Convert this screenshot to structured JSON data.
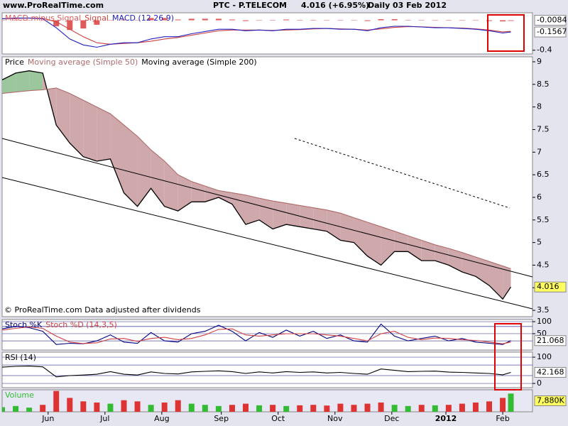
{
  "header": {
    "site": "www.ProRealTime.com",
    "title": "PTC - P.TELECOM",
    "quote": "4.016 (+6.95%)",
    "period": "Daily",
    "date": "03 Feb 2012"
  },
  "chart_data": [
    {
      "type": "line",
      "xlim": [
        -17,
        179
      ],
      "ylim": [
        -0.45,
        0.1
      ],
      "yticks": [
        -0.4
      ],
      "x": [
        -17,
        -12,
        -7,
        -2,
        3,
        8,
        13,
        18,
        23,
        28,
        33,
        38,
        43,
        48,
        53,
        58,
        63,
        68,
        73,
        78,
        83,
        88,
        93,
        98,
        103,
        108,
        113,
        118,
        123,
        128,
        133,
        138,
        143,
        148,
        153,
        158,
        163,
        168,
        171
      ],
      "series": [
        {
          "name": "MACD minus Signal",
          "type": "bar",
          "color": "#e05a5a",
          "values": [
            0,
            0.005,
            0,
            -0.005,
            -0.08,
            -0.13,
            -0.11,
            -0.06,
            0,
            0.01,
            0,
            0.03,
            0.03,
            0.01,
            0.02,
            0.02,
            0.02,
            0.01,
            -0.01,
            0,
            -0.005,
            0.01,
            0.005,
            0.005,
            0,
            -0.005,
            0,
            -0.01,
            0.015,
            0.015,
            0.005,
            -0.002,
            -0.005,
            0,
            -0.005,
            -0.005,
            -0.01,
            -0.015,
            -0.0084
          ]
        },
        {
          "name": "Signal",
          "type": "line",
          "color": "#d04040",
          "values": [
            0.02,
            0.025,
            0.03,
            0.025,
            -0.02,
            -0.12,
            -0.22,
            -0.3,
            -0.32,
            -0.31,
            -0.3,
            -0.28,
            -0.25,
            -0.23,
            -0.2,
            -0.17,
            -0.14,
            -0.13,
            -0.13,
            -0.13,
            -0.135,
            -0.13,
            -0.125,
            -0.115,
            -0.11,
            -0.115,
            -0.12,
            -0.13,
            -0.115,
            -0.095,
            -0.085,
            -0.088,
            -0.095,
            -0.1,
            -0.105,
            -0.115,
            -0.13,
            -0.155,
            -0.1483
          ]
        },
        {
          "name": "MACD (12 26 9)",
          "type": "line",
          "color": "#2020c0",
          "values": [
            0.02,
            0.03,
            0.03,
            0.02,
            -0.1,
            -0.25,
            -0.33,
            -0.36,
            -0.32,
            -0.3,
            -0.3,
            -0.25,
            -0.22,
            -0.22,
            -0.18,
            -0.15,
            -0.12,
            -0.12,
            -0.14,
            -0.13,
            -0.14,
            -0.12,
            -0.12,
            -0.11,
            -0.11,
            -0.12,
            -0.12,
            -0.14,
            -0.1,
            -0.08,
            -0.08,
            -0.09,
            -0.1,
            -0.1,
            -0.11,
            -0.12,
            -0.14,
            -0.17,
            -0.1567
          ]
        }
      ]
    },
    {
      "type": "line",
      "xlim": [
        -17,
        179
      ],
      "ylim": [
        3.36,
        9.11
      ],
      "yticks": [
        3.5,
        4,
        4.5,
        5,
        5.5,
        6,
        6.5,
        7,
        7.5,
        8,
        8.5,
        9
      ],
      "note": "© ProRealTime.com  Data adjusted after dividends",
      "fill": {
        "above": "#9cc79c",
        "below": "#cfa8ac"
      },
      "legend_extra": "Moving average (Simple 200)",
      "x": [
        -17,
        -12,
        -7,
        -2,
        3,
        8,
        13,
        18,
        23,
        28,
        33,
        38,
        43,
        48,
        53,
        58,
        63,
        68,
        73,
        78,
        83,
        88,
        93,
        98,
        103,
        108,
        113,
        118,
        123,
        128,
        133,
        138,
        143,
        148,
        153,
        158,
        163,
        168,
        171
      ],
      "series": [
        {
          "name": "Price",
          "type": "line",
          "color": "#000000",
          "values": [
            8.6,
            8.75,
            8.8,
            8.75,
            7.6,
            7.2,
            6.9,
            6.8,
            6.85,
            6.1,
            5.8,
            6.2,
            5.8,
            5.7,
            5.9,
            5.9,
            6.0,
            5.85,
            5.4,
            5.5,
            5.3,
            5.4,
            5.35,
            5.3,
            5.25,
            5.05,
            5.0,
            4.7,
            4.5,
            4.8,
            4.8,
            4.6,
            4.6,
            4.5,
            4.35,
            4.25,
            4.05,
            3.75,
            4.016
          ]
        },
        {
          "name": "Moving average (Simple 50)",
          "type": "line",
          "color": "#b06a6a",
          "values": [
            8.3,
            8.33,
            8.36,
            8.38,
            8.42,
            8.3,
            8.15,
            8.0,
            7.85,
            7.6,
            7.35,
            7.05,
            6.8,
            6.5,
            6.35,
            6.25,
            6.15,
            6.1,
            6.05,
            5.98,
            5.92,
            5.87,
            5.82,
            5.77,
            5.72,
            5.65,
            5.55,
            5.45,
            5.35,
            5.25,
            5.15,
            5.05,
            4.95,
            4.87,
            4.78,
            4.68,
            4.58,
            4.48,
            4.42
          ]
        }
      ]
    },
    {
      "type": "line",
      "xlim": [
        -17,
        179
      ],
      "ylim": [
        -18,
        109
      ],
      "yticks": [
        50,
        100
      ],
      "levels": [
        80,
        20
      ],
      "x": [
        -17,
        -12,
        -7,
        -2,
        3,
        8,
        13,
        18,
        23,
        28,
        33,
        38,
        43,
        48,
        53,
        58,
        63,
        68,
        73,
        78,
        83,
        88,
        93,
        98,
        103,
        108,
        113,
        118,
        123,
        128,
        133,
        138,
        143,
        148,
        153,
        158,
        163,
        168,
        171
      ],
      "series": [
        {
          "name": "Stoch %K",
          "type": "line",
          "color": "#000080",
          "values": [
            70,
            80,
            75,
            60,
            5,
            10,
            8,
            20,
            45,
            15,
            10,
            55,
            20,
            15,
            50,
            60,
            85,
            60,
            20,
            55,
            35,
            65,
            40,
            60,
            30,
            45,
            20,
            15,
            90,
            40,
            20,
            30,
            40,
            20,
            30,
            15,
            10,
            5,
            21.068
          ]
        },
        {
          "name": "Stoch %D (14,3,5)",
          "type": "line",
          "color": "#d04040",
          "values": [
            65,
            72,
            78,
            72,
            40,
            15,
            9,
            12,
            28,
            30,
            18,
            30,
            35,
            25,
            30,
            45,
            68,
            70,
            45,
            40,
            45,
            50,
            50,
            50,
            45,
            40,
            30,
            20,
            50,
            60,
            35,
            25,
            32,
            30,
            25,
            22,
            15,
            8,
            15
          ]
        }
      ]
    },
    {
      "type": "line",
      "xlim": [
        -17,
        179
      ],
      "ylim": [
        -16,
        119
      ],
      "yticks": [
        0,
        100
      ],
      "levels": [
        70,
        30
      ],
      "x": [
        -17,
        -12,
        -7,
        -2,
        3,
        8,
        13,
        18,
        23,
        28,
        33,
        38,
        43,
        48,
        53,
        58,
        63,
        68,
        73,
        78,
        83,
        88,
        93,
        98,
        103,
        108,
        113,
        118,
        123,
        128,
        133,
        138,
        143,
        148,
        153,
        158,
        163,
        168,
        171
      ],
      "series": [
        {
          "name": "RSI (14)",
          "type": "line",
          "color": "#000000",
          "values": [
            62,
            65,
            66,
            63,
            25,
            30,
            32,
            35,
            45,
            35,
            32,
            44,
            38,
            36,
            44,
            46,
            48,
            45,
            38,
            44,
            40,
            45,
            42,
            44,
            40,
            42,
            38,
            35,
            55,
            50,
            45,
            46,
            47,
            43,
            42,
            40,
            38,
            33,
            42.168
          ]
        }
      ]
    },
    {
      "type": "bar",
      "xlim": [
        -17,
        179
      ],
      "ylim": [
        0,
        9500
      ],
      "up_color": "#33bb33",
      "down_color": "#dd3333",
      "xticks": [
        {
          "value": 0,
          "label": "Jun"
        },
        {
          "value": 21,
          "label": "Jul"
        },
        {
          "value": 42,
          "label": "Aug"
        },
        {
          "value": 64,
          "label": "Sep"
        },
        {
          "value": 85,
          "label": "Oct"
        },
        {
          "value": 106,
          "label": "Nov"
        },
        {
          "value": 127,
          "label": "Dec"
        },
        {
          "value": 147,
          "label": "2012"
        },
        {
          "value": 168,
          "label": "Feb"
        }
      ],
      "x": [
        -17,
        -12,
        -7,
        -2,
        3,
        8,
        13,
        18,
        23,
        28,
        33,
        38,
        43,
        48,
        53,
        58,
        63,
        68,
        73,
        78,
        83,
        88,
        93,
        98,
        103,
        108,
        113,
        118,
        123,
        128,
        133,
        138,
        143,
        148,
        153,
        158,
        163,
        168,
        171
      ],
      "last_label": "7,880K",
      "series": [
        {
          "name": "Volume",
          "type": "bar",
          "color": "#33bb33",
          "values": [
            2000,
            2500,
            1800,
            3000,
            9000,
            6000,
            4500,
            4000,
            3500,
            5000,
            4500,
            3000,
            4000,
            5000,
            3500,
            3000,
            2500,
            3000,
            3500,
            2800,
            3000,
            2500,
            2800,
            3000,
            2700,
            3500,
            3000,
            3500,
            4000,
            3000,
            2500,
            3000,
            2800,
            3000,
            3500,
            4000,
            4500,
            6000,
            7880
          ]
        }
      ]
    }
  ]
}
